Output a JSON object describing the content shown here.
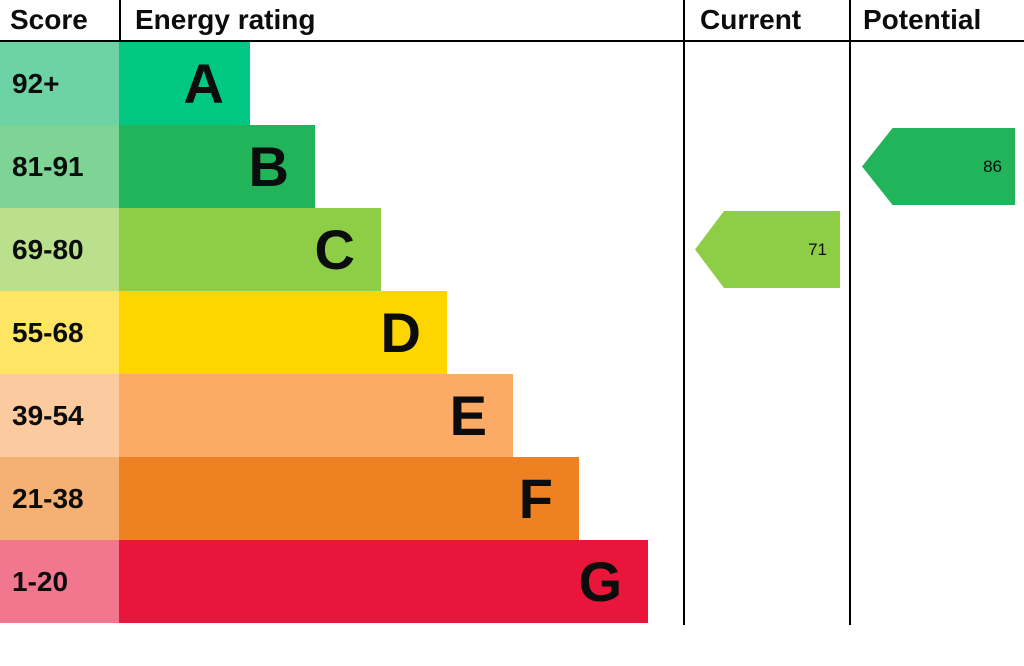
{
  "header": {
    "score": "Score",
    "energy_rating": "Energy rating",
    "current": "Current",
    "potential": "Potential"
  },
  "bands": [
    {
      "score": "92+",
      "letter": "A",
      "band_color": "#00c781",
      "score_color": "#6ed3a4"
    },
    {
      "score": "81-91",
      "letter": "B",
      "band_color": "#21b45b",
      "score_color": "#7ed494"
    },
    {
      "score": "69-80",
      "letter": "C",
      "band_color": "#8dce46",
      "score_color": "#badf8d"
    },
    {
      "score": "55-68",
      "letter": "D",
      "band_color": "#ffd500",
      "score_color": "#ffe564"
    },
    {
      "score": "39-54",
      "letter": "E",
      "band_color": "#fbab66",
      "score_color": "#fcca9f"
    },
    {
      "score": "21-38",
      "letter": "F",
      "band_color": "#ee8122",
      "score_color": "#f4b173"
    },
    {
      "score": "1-20",
      "letter": "G",
      "band_color": "#e9153b",
      "score_color": "#f2778e"
    }
  ],
  "current": {
    "value": "71",
    "band": "C",
    "color": "#8dce46"
  },
  "potential": {
    "value": "86",
    "band": "B",
    "color": "#21b45b"
  },
  "chart_data": {
    "type": "bar",
    "title": "Energy rating",
    "categories": [
      "A",
      "B",
      "C",
      "D",
      "E",
      "F",
      "G"
    ],
    "score_ranges": [
      "92+",
      "81-91",
      "69-80",
      "55-68",
      "39-54",
      "21-38",
      "1-20"
    ],
    "band_colors": [
      "#00c781",
      "#21b45b",
      "#8dce46",
      "#ffd500",
      "#fbab66",
      "#ee8122",
      "#e9153b"
    ],
    "current_score": 71,
    "current_band": "C",
    "potential_score": 86,
    "potential_band": "B",
    "legend_position": "none",
    "grid": false
  }
}
